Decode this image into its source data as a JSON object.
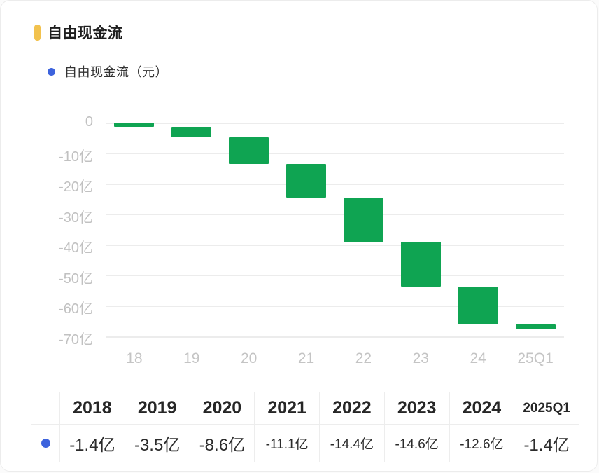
{
  "header": {
    "title": "自由现金流"
  },
  "legend": {
    "label": "自由现金流（元）"
  },
  "colors": {
    "bar_green": "#0FA452",
    "accent_yellow": "#F2C24E",
    "dot_blue": "#3D63DD",
    "grid_line": "#ECECEC",
    "axis_label": "#C1C1C1"
  },
  "chart_data": {
    "type": "bar",
    "subtype": "waterfall",
    "title": "自由现金流",
    "legend_entries": [
      "自由现金流（元）"
    ],
    "legend_position": "top-left",
    "unit": "亿",
    "categories": [
      "18",
      "19",
      "20",
      "21",
      "22",
      "23",
      "24",
      "25Q1"
    ],
    "values": [
      -1.4,
      -3.5,
      -8.6,
      -11.1,
      -14.4,
      -14.6,
      -12.6,
      -1.4
    ],
    "cumulative_end": [
      -1.4,
      -4.9,
      -13.5,
      -24.6,
      -39.0,
      -53.6,
      -66.2,
      -67.6
    ],
    "y_ticks": [
      0,
      -10,
      -20,
      -30,
      -40,
      -50,
      -60,
      -70
    ],
    "y_tick_labels": [
      "0",
      "-10亿",
      "-20亿",
      "-30亿",
      "-40亿",
      "-50亿",
      "-60亿",
      "-70亿"
    ],
    "ylim": [
      -70,
      0
    ],
    "xlabel": "",
    "ylabel": "",
    "grid": true
  },
  "table": {
    "columns": [
      "2018",
      "2019",
      "2020",
      "2021",
      "2022",
      "2023",
      "2024",
      "2025Q1"
    ],
    "rows": [
      {
        "series": "自由现金流（元）",
        "values": [
          "-1.4亿",
          "-3.5亿",
          "-8.6亿",
          "-11.1亿",
          "-14.4亿",
          "-14.6亿",
          "-12.6亿",
          "-1.4亿"
        ]
      }
    ]
  }
}
